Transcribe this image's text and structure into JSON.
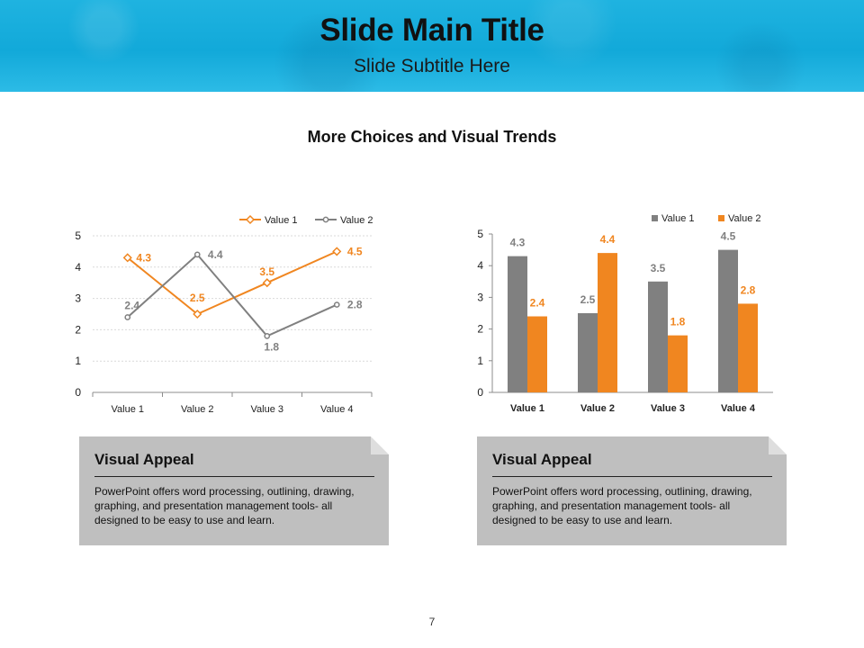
{
  "slide": {
    "title": "Slide Main Title",
    "subtitle": "Slide Subtitle Here",
    "section_title": "More Choices and Visual Trends",
    "page_number": "7"
  },
  "colors": {
    "series1": "#f08620",
    "series2": "#808080",
    "grid": "#d9d9d9",
    "axis": "#8c8c8c",
    "card_bg": "#bfbfbf"
  },
  "cards": [
    {
      "title": "Visual Appeal",
      "body": "PowerPoint offers word processing, outlining, drawing, graphing, and presentation management tools- all designed to be easy to use and learn."
    },
    {
      "title": "Visual Appeal",
      "body": "PowerPoint offers word processing, outlining, drawing, graphing, and presentation management tools- all designed to be easy to use and learn."
    }
  ],
  "chart_data": [
    {
      "type": "line",
      "categories": [
        "Value 1",
        "Value 2",
        "Value 3",
        "Value 4"
      ],
      "series": [
        {
          "name": "Value 1",
          "values": [
            4.3,
            2.5,
            3.5,
            4.5
          ]
        },
        {
          "name": "Value 2",
          "values": [
            2.4,
            4.4,
            1.8,
            2.8
          ]
        }
      ],
      "ylim": [
        0,
        5
      ],
      "yticks": [
        "0",
        "1",
        "2",
        "3",
        "4",
        "5"
      ],
      "grid": true,
      "legend": "top-right",
      "data_labels": true
    },
    {
      "type": "bar",
      "categories": [
        "Value 1",
        "Value 2",
        "Value 3",
        "Value 4"
      ],
      "series": [
        {
          "name": "Value 1",
          "values": [
            4.3,
            2.5,
            3.5,
            4.5
          ]
        },
        {
          "name": "Value 2",
          "values": [
            2.4,
            4.4,
            1.8,
            2.8
          ]
        }
      ],
      "ylim": [
        0,
        5
      ],
      "yticks": [
        "0",
        "1",
        "2",
        "3",
        "4",
        "5"
      ],
      "grid": false,
      "legend": "top-right",
      "data_labels": true
    }
  ]
}
